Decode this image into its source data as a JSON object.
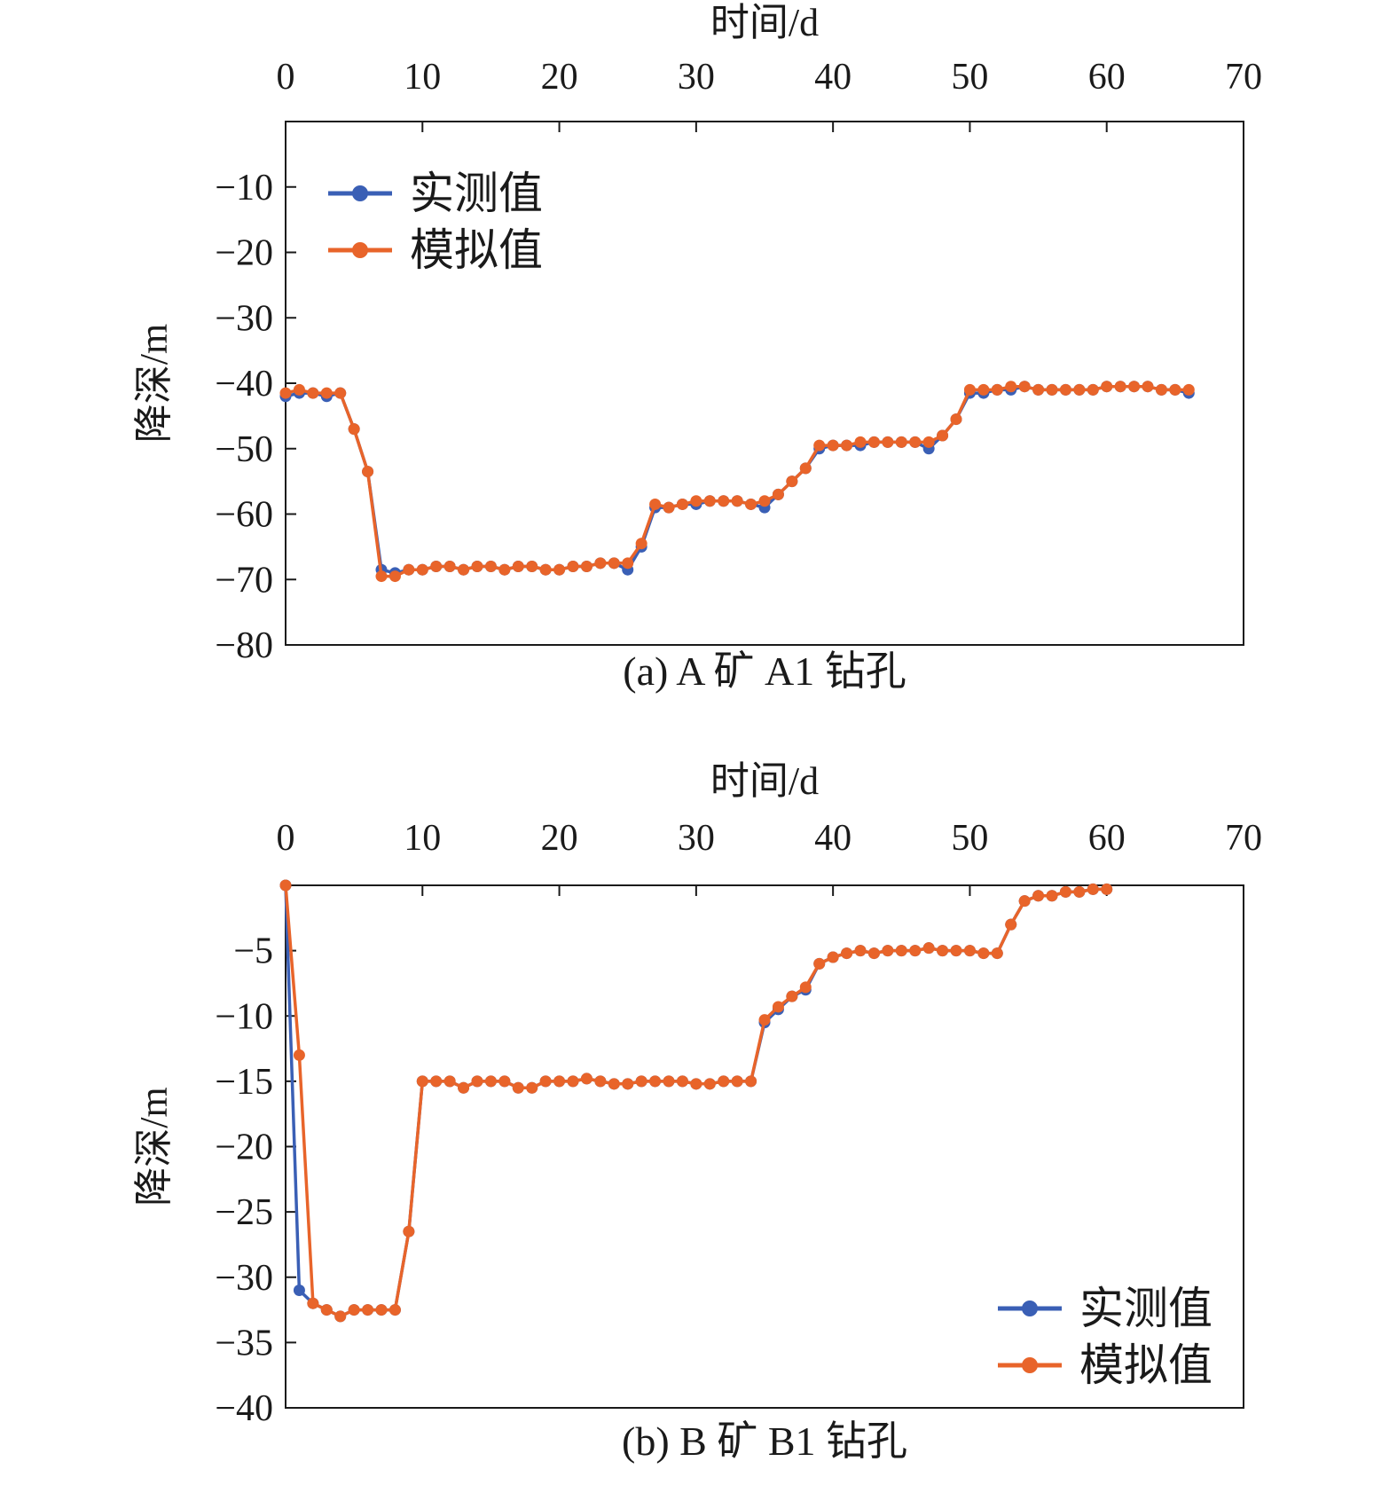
{
  "colors": {
    "measured": "#3a5fb5",
    "simulated": "#e8642a",
    "axis": "#1a1a1a"
  },
  "chart_data": [
    {
      "type": "line",
      "caption": "(a) A 矿 A1 钻孔",
      "xlabel": "时间/d",
      "ylabel": "降深/m",
      "x_axis_position": "top",
      "legend_position": "top-left",
      "grid": false,
      "xlim": [
        0,
        70
      ],
      "ylim": [
        -80,
        0
      ],
      "xticks": [
        "0",
        "10",
        "20",
        "30",
        "40",
        "50",
        "60",
        "70"
      ],
      "yticks": [
        "−10",
        "−20",
        "−30",
        "−40",
        "−50",
        "−60",
        "−70",
        "−80"
      ],
      "series": [
        {
          "name": "实测值",
          "color": "#3a5fb5",
          "x": [
            0,
            1,
            2,
            3,
            4,
            5,
            6,
            7,
            8,
            9,
            10,
            11,
            12,
            13,
            14,
            15,
            16,
            17,
            18,
            19,
            20,
            21,
            22,
            23,
            24,
            25,
            26,
            27,
            28,
            29,
            30,
            31,
            32,
            33,
            34,
            35,
            36,
            37,
            38,
            39,
            40,
            41,
            42,
            43,
            44,
            45,
            46,
            47,
            48,
            49,
            50,
            51,
            52,
            53,
            54,
            55,
            56,
            57,
            58,
            59,
            60,
            61,
            62,
            63,
            64,
            65,
            66
          ],
          "y": [
            -42,
            -41.5,
            -41.5,
            -42,
            -41.5,
            -47,
            -53.5,
            -68.5,
            -69,
            -68.5,
            -68.5,
            -68,
            -68,
            -68.5,
            -68,
            -68,
            -68.5,
            -68,
            -68,
            -68.5,
            -68.5,
            -68,
            -68,
            -67.5,
            -67.5,
            -68.5,
            -65,
            -59,
            -59,
            -58.5,
            -58.5,
            -58,
            -58,
            -58,
            -58.5,
            -59,
            -57,
            -55,
            -53,
            -50,
            -49.5,
            -49.5,
            -49.5,
            -49,
            -49,
            -49,
            -49,
            -50,
            -48,
            -45.5,
            -41.5,
            -41.5,
            -41,
            -41,
            -40.5,
            -41,
            -41,
            -41,
            -41,
            -41,
            -40.5,
            -40.5,
            -40.5,
            -40.5,
            -41,
            -41,
            -41.5
          ]
        },
        {
          "name": "模拟值",
          "color": "#e8642a",
          "x": [
            0,
            1,
            2,
            3,
            4,
            5,
            6,
            7,
            8,
            9,
            10,
            11,
            12,
            13,
            14,
            15,
            16,
            17,
            18,
            19,
            20,
            21,
            22,
            23,
            24,
            25,
            26,
            27,
            28,
            29,
            30,
            31,
            32,
            33,
            34,
            35,
            36,
            37,
            38,
            39,
            40,
            41,
            42,
            43,
            44,
            45,
            46,
            47,
            48,
            49,
            50,
            51,
            52,
            53,
            54,
            55,
            56,
            57,
            58,
            59,
            60,
            61,
            62,
            63,
            64,
            65,
            66
          ],
          "y": [
            -41.5,
            -41,
            -41.5,
            -41.5,
            -41.5,
            -47,
            -53.5,
            -69.5,
            -69.5,
            -68.5,
            -68.5,
            -68,
            -68,
            -68.5,
            -68,
            -68,
            -68.5,
            -68,
            -68,
            -68.5,
            -68.5,
            -68,
            -68,
            -67.5,
            -67.5,
            -67.5,
            -64.5,
            -58.5,
            -59,
            -58.5,
            -58,
            -58,
            -58,
            -58,
            -58.5,
            -58,
            -57,
            -55,
            -53,
            -49.5,
            -49.5,
            -49.5,
            -49,
            -49,
            -49,
            -49,
            -49,
            -49,
            -48,
            -45.5,
            -41,
            -41,
            -41,
            -40.5,
            -40.5,
            -41,
            -41,
            -41,
            -41,
            -41,
            -40.5,
            -40.5,
            -40.5,
            -40.5,
            -41,
            -41,
            -41
          ]
        }
      ]
    },
    {
      "type": "line",
      "caption": "(b) B 矿 B1 钻孔",
      "xlabel": "时间/d",
      "ylabel": "降深/m",
      "x_axis_position": "top",
      "legend_position": "bottom-right",
      "grid": false,
      "xlim": [
        0,
        70
      ],
      "ylim": [
        -40,
        0
      ],
      "xticks": [
        "0",
        "10",
        "20",
        "30",
        "40",
        "50",
        "60",
        "70"
      ],
      "yticks": [
        "−5",
        "−10",
        "−15",
        "−20",
        "−25",
        "−30",
        "−35",
        "−40"
      ],
      "series": [
        {
          "name": "实测值",
          "color": "#3a5fb5",
          "x": [
            0,
            1,
            2,
            3,
            4,
            5,
            6,
            7,
            8,
            9,
            10,
            11,
            12,
            13,
            14,
            15,
            16,
            17,
            18,
            19,
            20,
            21,
            22,
            23,
            24,
            25,
            26,
            27,
            28,
            29,
            30,
            31,
            32,
            33,
            34,
            35,
            36,
            37,
            38,
            39,
            40,
            41,
            42,
            43,
            44,
            45,
            46,
            47,
            48,
            49,
            50,
            51,
            52,
            53,
            54,
            55,
            56,
            57,
            58,
            59,
            60
          ],
          "y": [
            0,
            -31,
            -32,
            -32.5,
            -33,
            -32.5,
            -32.5,
            -32.5,
            -32.5,
            -26.5,
            -15,
            -15,
            -15,
            -15.5,
            -15,
            -15,
            -15,
            -15.5,
            -15.5,
            -15,
            -15,
            -15,
            -14.8,
            -15,
            -15.2,
            -15.2,
            -15,
            -15,
            -15,
            -15,
            -15.2,
            -15.2,
            -15,
            -15,
            -15,
            -10.5,
            -9.5,
            -8.5,
            -8,
            -6,
            -5.5,
            -5.2,
            -5,
            -5.2,
            -5,
            -5,
            -5,
            -4.8,
            -5,
            -5,
            -5,
            -5.2,
            -5.2,
            -3,
            -1.2,
            -0.8,
            -0.8,
            -0.5,
            -0.5,
            -0.3,
            -0.3
          ]
        },
        {
          "name": "模拟值",
          "color": "#e8642a",
          "x": [
            0,
            1,
            2,
            3,
            4,
            5,
            6,
            7,
            8,
            9,
            10,
            11,
            12,
            13,
            14,
            15,
            16,
            17,
            18,
            19,
            20,
            21,
            22,
            23,
            24,
            25,
            26,
            27,
            28,
            29,
            30,
            31,
            32,
            33,
            34,
            35,
            36,
            37,
            38,
            39,
            40,
            41,
            42,
            43,
            44,
            45,
            46,
            47,
            48,
            49,
            50,
            51,
            52,
            53,
            54,
            55,
            56,
            57,
            58,
            59,
            60
          ],
          "y": [
            0,
            -13,
            -32,
            -32.5,
            -33,
            -32.5,
            -32.5,
            -32.5,
            -32.5,
            -26.5,
            -15,
            -15,
            -15,
            -15.5,
            -15,
            -15,
            -15,
            -15.5,
            -15.5,
            -15,
            -15,
            -15,
            -14.8,
            -15,
            -15.2,
            -15.2,
            -15,
            -15,
            -15,
            -15,
            -15.2,
            -15.2,
            -15,
            -15,
            -15,
            -10.3,
            -9.3,
            -8.5,
            -7.8,
            -6,
            -5.5,
            -5.2,
            -5,
            -5.2,
            -5,
            -5,
            -5,
            -4.8,
            -5,
            -5,
            -5,
            -5.2,
            -5.2,
            -3,
            -1.2,
            -0.8,
            -0.8,
            -0.5,
            -0.5,
            -0.3,
            -0.3
          ]
        }
      ]
    }
  ]
}
